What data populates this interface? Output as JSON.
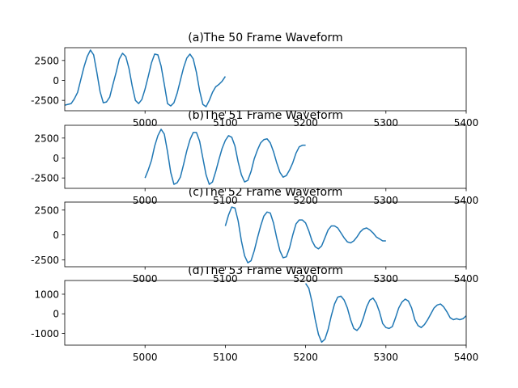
{
  "figure": {
    "background": "#ffffff",
    "line_color": "#1f77b4",
    "axis_color": "#000000"
  },
  "chart_data": [
    {
      "type": "line",
      "title": "(a)The 50 Frame Waveform",
      "xlim": [
        4900,
        5400
      ],
      "ylim": [
        -3800,
        4100
      ],
      "xticks": [
        5000,
        5100,
        5200,
        5300,
        5400
      ],
      "yticks": [
        2500,
        0,
        -2500
      ],
      "series": [
        {
          "x": [
            4900,
            4904,
            4908,
            4912,
            4916,
            4920,
            4924,
            4928,
            4932,
            4936,
            4940,
            4944,
            4948,
            4952,
            4956,
            4960,
            4964,
            4968,
            4972,
            4976,
            4980,
            4984,
            4988,
            4992,
            4996,
            5000,
            5004,
            5008,
            5012,
            5016,
            5020,
            5024,
            5028,
            5032,
            5036,
            5040,
            5044,
            5048,
            5052,
            5056,
            5060,
            5064,
            5068,
            5072,
            5076,
            5080,
            5084,
            5088,
            5092,
            5096,
            5100
          ],
          "y": [
            -3100,
            -3000,
            -2900,
            -2300,
            -1500,
            100,
            1700,
            3000,
            3800,
            3200,
            1000,
            -1400,
            -2800,
            -2700,
            -2100,
            -500,
            1000,
            2700,
            3400,
            3000,
            1500,
            -700,
            -2500,
            -2900,
            -2400,
            -1100,
            500,
            2200,
            3300,
            3200,
            1800,
            -500,
            -2900,
            -3200,
            -2800,
            -1600,
            0,
            1600,
            2800,
            3300,
            2700,
            1000,
            -1300,
            -3000,
            -3300,
            -2500,
            -1500,
            -800,
            -500,
            -100,
            500
          ]
        }
      ]
    },
    {
      "type": "line",
      "title": "(b)The 51 Frame Waveform",
      "xlim": [
        4900,
        5400
      ],
      "ylim": [
        -3800,
        4100
      ],
      "xticks": [
        5000,
        5100,
        5200,
        5300,
        5400
      ],
      "yticks": [
        2500,
        0,
        -2500
      ],
      "series": [
        {
          "x": [
            5000,
            5004,
            5008,
            5012,
            5016,
            5020,
            5024,
            5028,
            5032,
            5036,
            5040,
            5044,
            5048,
            5052,
            5056,
            5060,
            5064,
            5068,
            5072,
            5076,
            5080,
            5084,
            5088,
            5092,
            5096,
            5100,
            5104,
            5108,
            5112,
            5116,
            5120,
            5124,
            5128,
            5132,
            5136,
            5140,
            5144,
            5148,
            5152,
            5156,
            5160,
            5164,
            5168,
            5172,
            5176,
            5180,
            5184,
            5188,
            5192,
            5196,
            5200
          ],
          "y": [
            -2500,
            -1500,
            -300,
            1500,
            2800,
            3600,
            3000,
            800,
            -1800,
            -3300,
            -3100,
            -2400,
            -800,
            900,
            2300,
            3200,
            3200,
            2100,
            0,
            -2100,
            -3300,
            -3000,
            -1700,
            -200,
            1200,
            2200,
            2800,
            2600,
            1500,
            -500,
            -2100,
            -3000,
            -2800,
            -1700,
            -100,
            1000,
            1900,
            2300,
            2400,
            1900,
            800,
            -600,
            -1800,
            -2400,
            -2200,
            -1500,
            -600,
            600,
            1400,
            1600,
            1600
          ]
        }
      ]
    },
    {
      "type": "line",
      "title": "(c)The 52 Frame Waveform",
      "xlim": [
        4900,
        5400
      ],
      "ylim": [
        -3200,
        3300
      ],
      "xticks": [
        5000,
        5100,
        5200,
        5300,
        5400
      ],
      "yticks": [
        2500,
        0,
        -2500
      ],
      "series": [
        {
          "x": [
            5100,
            5104,
            5108,
            5112,
            5116,
            5120,
            5124,
            5128,
            5132,
            5136,
            5140,
            5144,
            5148,
            5152,
            5156,
            5160,
            5164,
            5168,
            5172,
            5176,
            5180,
            5184,
            5188,
            5192,
            5196,
            5200,
            5204,
            5208,
            5212,
            5216,
            5220,
            5224,
            5228,
            5232,
            5236,
            5240,
            5244,
            5248,
            5252,
            5256,
            5260,
            5264,
            5268,
            5272,
            5276,
            5280,
            5284,
            5288,
            5292,
            5296,
            5300
          ],
          "y": [
            900,
            2000,
            2800,
            2700,
            1400,
            -600,
            -2100,
            -2800,
            -2600,
            -1600,
            -300,
            900,
            1900,
            2300,
            2200,
            1200,
            -300,
            -1600,
            -2300,
            -2200,
            -1300,
            0,
            1100,
            1500,
            1500,
            1200,
            400,
            -600,
            -1200,
            -1400,
            -1100,
            -300,
            500,
            900,
            900,
            700,
            200,
            -300,
            -700,
            -800,
            -600,
            -200,
            300,
            600,
            700,
            500,
            200,
            -200,
            -400,
            -600,
            -600
          ]
        }
      ]
    },
    {
      "type": "line",
      "title": "(d)The 53 Frame Waveform",
      "xlim": [
        4900,
        5400
      ],
      "ylim": [
        -1600,
        1700
      ],
      "xticks": [
        5000,
        5100,
        5200,
        5300,
        5400
      ],
      "xtick_labels": [
        "5000",
        "5100",
        "5200",
        "5300",
        "5400"
      ],
      "yticks": [
        1000,
        0,
        -1000
      ],
      "series": [
        {
          "x": [
            5200,
            5204,
            5208,
            5212,
            5216,
            5220,
            5224,
            5228,
            5232,
            5236,
            5240,
            5244,
            5248,
            5252,
            5256,
            5260,
            5264,
            5268,
            5272,
            5276,
            5280,
            5284,
            5288,
            5292,
            5296,
            5300,
            5304,
            5308,
            5312,
            5316,
            5320,
            5324,
            5328,
            5332,
            5336,
            5340,
            5344,
            5348,
            5352,
            5356,
            5360,
            5364,
            5368,
            5372,
            5376,
            5380,
            5384,
            5388,
            5392,
            5396,
            5400
          ],
          "y": [
            1550,
            1300,
            600,
            -300,
            -1050,
            -1450,
            -1300,
            -800,
            -100,
            500,
            850,
            900,
            700,
            300,
            -300,
            -750,
            -850,
            -650,
            -200,
            350,
            700,
            800,
            550,
            100,
            -500,
            -700,
            -750,
            -650,
            -200,
            300,
            600,
            750,
            650,
            300,
            -300,
            -600,
            -700,
            -550,
            -300,
            0,
            300,
            450,
            500,
            350,
            100,
            -200,
            -300,
            -250,
            -300,
            -250,
            -100
          ]
        }
      ]
    }
  ]
}
